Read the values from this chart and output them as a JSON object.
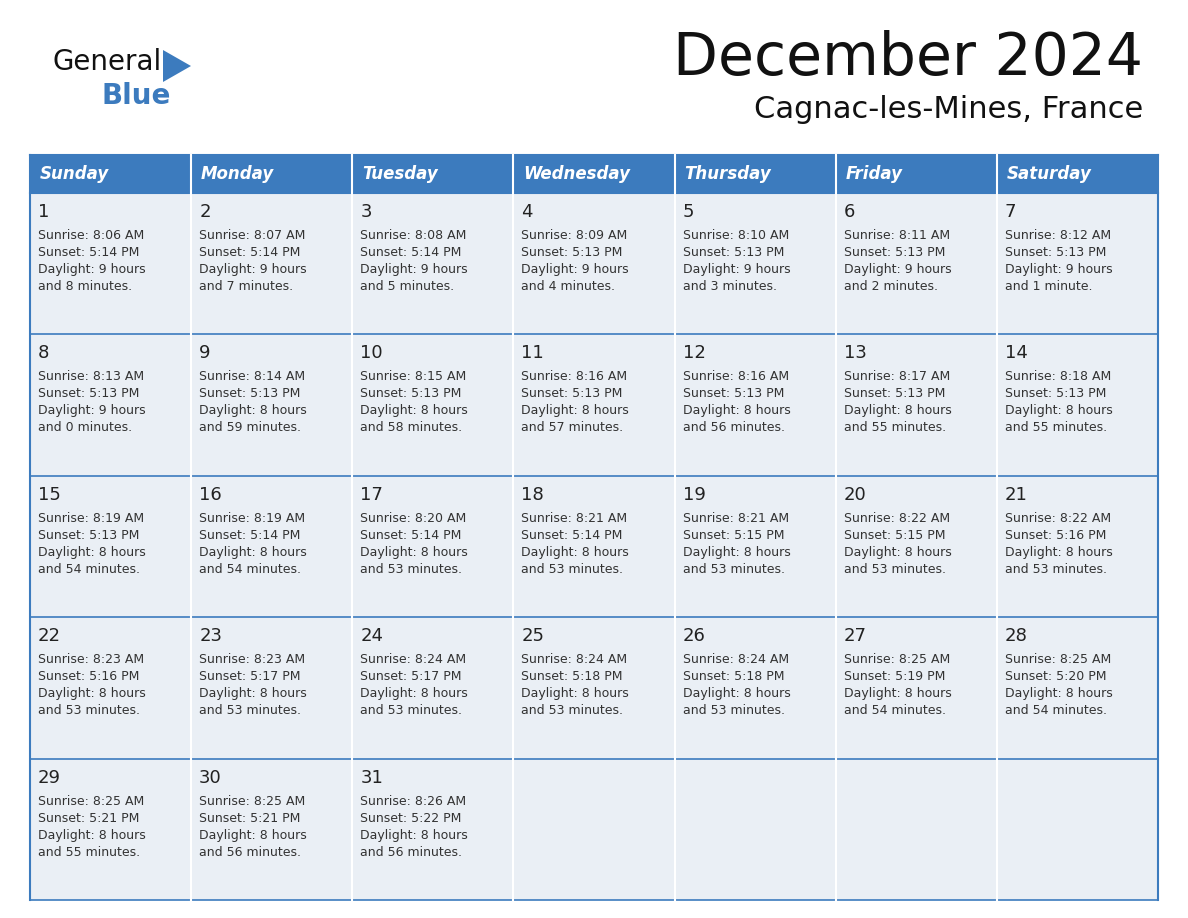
{
  "title": "December 2024",
  "subtitle": "Cagnac-les-Mines, France",
  "header_color": "#3C7BBE",
  "header_text_color": "#FFFFFF",
  "day_names": [
    "Sunday",
    "Monday",
    "Tuesday",
    "Wednesday",
    "Thursday",
    "Friday",
    "Saturday"
  ],
  "cell_bg": "#EAEFF5",
  "border_color": "#3C7BBE",
  "day_num_color": "#222222",
  "text_color": "#333333",
  "days": [
    {
      "day": 1,
      "col": 0,
      "row": 0,
      "sunrise": "8:06 AM",
      "sunset": "5:14 PM",
      "daylight_h": "9 hours",
      "daylight_m": "8 minutes."
    },
    {
      "day": 2,
      "col": 1,
      "row": 0,
      "sunrise": "8:07 AM",
      "sunset": "5:14 PM",
      "daylight_h": "9 hours",
      "daylight_m": "7 minutes."
    },
    {
      "day": 3,
      "col": 2,
      "row": 0,
      "sunrise": "8:08 AM",
      "sunset": "5:14 PM",
      "daylight_h": "9 hours",
      "daylight_m": "5 minutes."
    },
    {
      "day": 4,
      "col": 3,
      "row": 0,
      "sunrise": "8:09 AM",
      "sunset": "5:13 PM",
      "daylight_h": "9 hours",
      "daylight_m": "4 minutes."
    },
    {
      "day": 5,
      "col": 4,
      "row": 0,
      "sunrise": "8:10 AM",
      "sunset": "5:13 PM",
      "daylight_h": "9 hours",
      "daylight_m": "3 minutes."
    },
    {
      "day": 6,
      "col": 5,
      "row": 0,
      "sunrise": "8:11 AM",
      "sunset": "5:13 PM",
      "daylight_h": "9 hours",
      "daylight_m": "2 minutes."
    },
    {
      "day": 7,
      "col": 6,
      "row": 0,
      "sunrise": "8:12 AM",
      "sunset": "5:13 PM",
      "daylight_h": "9 hours",
      "daylight_m": "1 minute."
    },
    {
      "day": 8,
      "col": 0,
      "row": 1,
      "sunrise": "8:13 AM",
      "sunset": "5:13 PM",
      "daylight_h": "9 hours",
      "daylight_m": "0 minutes."
    },
    {
      "day": 9,
      "col": 1,
      "row": 1,
      "sunrise": "8:14 AM",
      "sunset": "5:13 PM",
      "daylight_h": "8 hours",
      "daylight_m": "59 minutes."
    },
    {
      "day": 10,
      "col": 2,
      "row": 1,
      "sunrise": "8:15 AM",
      "sunset": "5:13 PM",
      "daylight_h": "8 hours",
      "daylight_m": "58 minutes."
    },
    {
      "day": 11,
      "col": 3,
      "row": 1,
      "sunrise": "8:16 AM",
      "sunset": "5:13 PM",
      "daylight_h": "8 hours",
      "daylight_m": "57 minutes."
    },
    {
      "day": 12,
      "col": 4,
      "row": 1,
      "sunrise": "8:16 AM",
      "sunset": "5:13 PM",
      "daylight_h": "8 hours",
      "daylight_m": "56 minutes."
    },
    {
      "day": 13,
      "col": 5,
      "row": 1,
      "sunrise": "8:17 AM",
      "sunset": "5:13 PM",
      "daylight_h": "8 hours",
      "daylight_m": "55 minutes."
    },
    {
      "day": 14,
      "col": 6,
      "row": 1,
      "sunrise": "8:18 AM",
      "sunset": "5:13 PM",
      "daylight_h": "8 hours",
      "daylight_m": "55 minutes."
    },
    {
      "day": 15,
      "col": 0,
      "row": 2,
      "sunrise": "8:19 AM",
      "sunset": "5:13 PM",
      "daylight_h": "8 hours",
      "daylight_m": "54 minutes."
    },
    {
      "day": 16,
      "col": 1,
      "row": 2,
      "sunrise": "8:19 AM",
      "sunset": "5:14 PM",
      "daylight_h": "8 hours",
      "daylight_m": "54 minutes."
    },
    {
      "day": 17,
      "col": 2,
      "row": 2,
      "sunrise": "8:20 AM",
      "sunset": "5:14 PM",
      "daylight_h": "8 hours",
      "daylight_m": "53 minutes."
    },
    {
      "day": 18,
      "col": 3,
      "row": 2,
      "sunrise": "8:21 AM",
      "sunset": "5:14 PM",
      "daylight_h": "8 hours",
      "daylight_m": "53 minutes."
    },
    {
      "day": 19,
      "col": 4,
      "row": 2,
      "sunrise": "8:21 AM",
      "sunset": "5:15 PM",
      "daylight_h": "8 hours",
      "daylight_m": "53 minutes."
    },
    {
      "day": 20,
      "col": 5,
      "row": 2,
      "sunrise": "8:22 AM",
      "sunset": "5:15 PM",
      "daylight_h": "8 hours",
      "daylight_m": "53 minutes."
    },
    {
      "day": 21,
      "col": 6,
      "row": 2,
      "sunrise": "8:22 AM",
      "sunset": "5:16 PM",
      "daylight_h": "8 hours",
      "daylight_m": "53 minutes."
    },
    {
      "day": 22,
      "col": 0,
      "row": 3,
      "sunrise": "8:23 AM",
      "sunset": "5:16 PM",
      "daylight_h": "8 hours",
      "daylight_m": "53 minutes."
    },
    {
      "day": 23,
      "col": 1,
      "row": 3,
      "sunrise": "8:23 AM",
      "sunset": "5:17 PM",
      "daylight_h": "8 hours",
      "daylight_m": "53 minutes."
    },
    {
      "day": 24,
      "col": 2,
      "row": 3,
      "sunrise": "8:24 AM",
      "sunset": "5:17 PM",
      "daylight_h": "8 hours",
      "daylight_m": "53 minutes."
    },
    {
      "day": 25,
      "col": 3,
      "row": 3,
      "sunrise": "8:24 AM",
      "sunset": "5:18 PM",
      "daylight_h": "8 hours",
      "daylight_m": "53 minutes."
    },
    {
      "day": 26,
      "col": 4,
      "row": 3,
      "sunrise": "8:24 AM",
      "sunset": "5:18 PM",
      "daylight_h": "8 hours",
      "daylight_m": "53 minutes."
    },
    {
      "day": 27,
      "col": 5,
      "row": 3,
      "sunrise": "8:25 AM",
      "sunset": "5:19 PM",
      "daylight_h": "8 hours",
      "daylight_m": "54 minutes."
    },
    {
      "day": 28,
      "col": 6,
      "row": 3,
      "sunrise": "8:25 AM",
      "sunset": "5:20 PM",
      "daylight_h": "8 hours",
      "daylight_m": "54 minutes."
    },
    {
      "day": 29,
      "col": 0,
      "row": 4,
      "sunrise": "8:25 AM",
      "sunset": "5:21 PM",
      "daylight_h": "8 hours",
      "daylight_m": "55 minutes."
    },
    {
      "day": 30,
      "col": 1,
      "row": 4,
      "sunrise": "8:25 AM",
      "sunset": "5:21 PM",
      "daylight_h": "8 hours",
      "daylight_m": "56 minutes."
    },
    {
      "day": 31,
      "col": 2,
      "row": 4,
      "sunrise": "8:26 AM",
      "sunset": "5:22 PM",
      "daylight_h": "8 hours",
      "daylight_m": "56 minutes."
    }
  ],
  "fig_width": 11.88,
  "fig_height": 9.18,
  "dpi": 100
}
